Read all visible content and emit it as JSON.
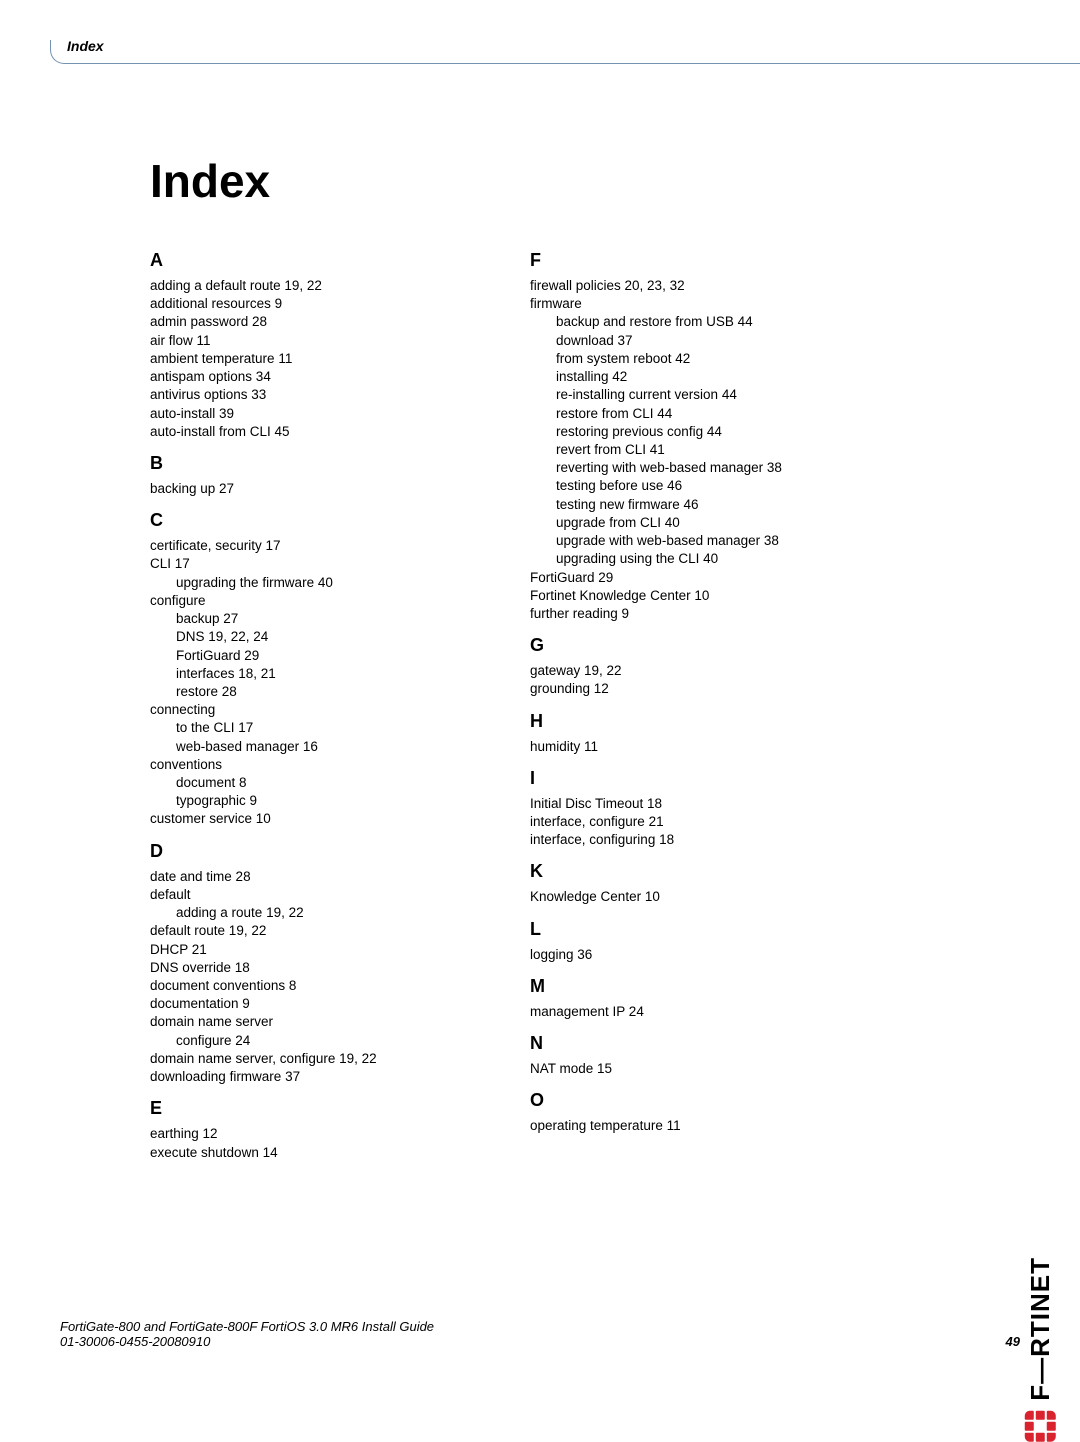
{
  "header": {
    "label": "Index"
  },
  "title": "Index",
  "columns": [
    {
      "sections": [
        {
          "letter": "A",
          "entries": [
            {
              "text": "adding a default route 19, 22"
            },
            {
              "text": "additional resources 9"
            },
            {
              "text": "admin password 28"
            },
            {
              "text": "air flow 11"
            },
            {
              "text": "ambient temperature 11"
            },
            {
              "text": "antispam options 34"
            },
            {
              "text": "antivirus options 33"
            },
            {
              "text": "auto-install 39"
            },
            {
              "text": "auto-install from CLI 45"
            }
          ]
        },
        {
          "letter": "B",
          "entries": [
            {
              "text": "backing up 27"
            }
          ]
        },
        {
          "letter": "C",
          "entries": [
            {
              "text": "certificate, security 17"
            },
            {
              "text": "CLI 17"
            },
            {
              "text": "upgrading the firmware 40",
              "sub": true
            },
            {
              "text": "configure"
            },
            {
              "text": "backup 27",
              "sub": true
            },
            {
              "text": "DNS 19, 22, 24",
              "sub": true
            },
            {
              "text": "FortiGuard 29",
              "sub": true
            },
            {
              "text": "interfaces 18, 21",
              "sub": true
            },
            {
              "text": "restore 28",
              "sub": true
            },
            {
              "text": "connecting"
            },
            {
              "text": "to the CLI 17",
              "sub": true
            },
            {
              "text": "web-based manager 16",
              "sub": true
            },
            {
              "text": "conventions"
            },
            {
              "text": "document 8",
              "sub": true
            },
            {
              "text": "typographic 9",
              "sub": true
            },
            {
              "text": "customer service 10"
            }
          ]
        },
        {
          "letter": "D",
          "entries": [
            {
              "text": "date and time 28"
            },
            {
              "text": "default"
            },
            {
              "text": "adding a route 19, 22",
              "sub": true
            },
            {
              "text": "default route 19, 22"
            },
            {
              "text": "DHCP 21"
            },
            {
              "text": "DNS override 18"
            },
            {
              "text": "document conventions 8"
            },
            {
              "text": "documentation 9"
            },
            {
              "text": "domain name server"
            },
            {
              "text": "configure 24",
              "sub": true
            },
            {
              "text": "domain name server, configure 19, 22"
            },
            {
              "text": "downloading firmware 37"
            }
          ]
        },
        {
          "letter": "E",
          "entries": [
            {
              "text": "earthing 12"
            },
            {
              "text": "execute shutdown 14"
            }
          ]
        }
      ]
    },
    {
      "sections": [
        {
          "letter": "F",
          "entries": [
            {
              "text": "firewall policies 20, 23, 32"
            },
            {
              "text": "firmware"
            },
            {
              "text": "backup and restore from USB 44",
              "sub": true
            },
            {
              "text": "download 37",
              "sub": true
            },
            {
              "text": "from system reboot 42",
              "sub": true
            },
            {
              "text": "installing 42",
              "sub": true
            },
            {
              "text": "re-installing current version 44",
              "sub": true
            },
            {
              "text": "restore from CLI 44",
              "sub": true
            },
            {
              "text": "restoring previous config 44",
              "sub": true
            },
            {
              "text": "revert from CLI 41",
              "sub": true
            },
            {
              "text": "reverting with web-based manager 38",
              "sub": true
            },
            {
              "text": "testing before use 46",
              "sub": true
            },
            {
              "text": "testing new firmware 46",
              "sub": true
            },
            {
              "text": "upgrade from CLI 40",
              "sub": true
            },
            {
              "text": "upgrade with web-based manager 38",
              "sub": true
            },
            {
              "text": "upgrading using the CLI 40",
              "sub": true
            },
            {
              "text": "FortiGuard 29"
            },
            {
              "text": "Fortinet Knowledge Center 10"
            },
            {
              "text": "further reading 9"
            }
          ]
        },
        {
          "letter": "G",
          "entries": [
            {
              "text": "gateway 19, 22"
            },
            {
              "text": "grounding 12"
            }
          ]
        },
        {
          "letter": "H",
          "entries": [
            {
              "text": "humidity 11"
            }
          ]
        },
        {
          "letter": "I",
          "entries": [
            {
              "text": "Initial Disc Timeout 18"
            },
            {
              "text": "interface, configure 21"
            },
            {
              "text": "interface, configuring 18"
            }
          ]
        },
        {
          "letter": "K",
          "entries": [
            {
              "text": "Knowledge Center 10"
            }
          ]
        },
        {
          "letter": "L",
          "entries": [
            {
              "text": "logging 36"
            }
          ]
        },
        {
          "letter": "M",
          "entries": [
            {
              "text": "management IP 24"
            }
          ]
        },
        {
          "letter": "N",
          "entries": [
            {
              "text": "NAT mode 15"
            }
          ]
        },
        {
          "letter": "O",
          "entries": [
            {
              "text": "operating temperature 11"
            }
          ]
        }
      ]
    }
  ],
  "footer": {
    "line1": "FortiGate-800 and FortiGate-800F FortiOS 3.0 MR6 Install Guide",
    "line2": "01-30006-0455-20080910",
    "page": "49"
  },
  "brand": {
    "text": "F—RTINET",
    "color": "#d9232e"
  }
}
